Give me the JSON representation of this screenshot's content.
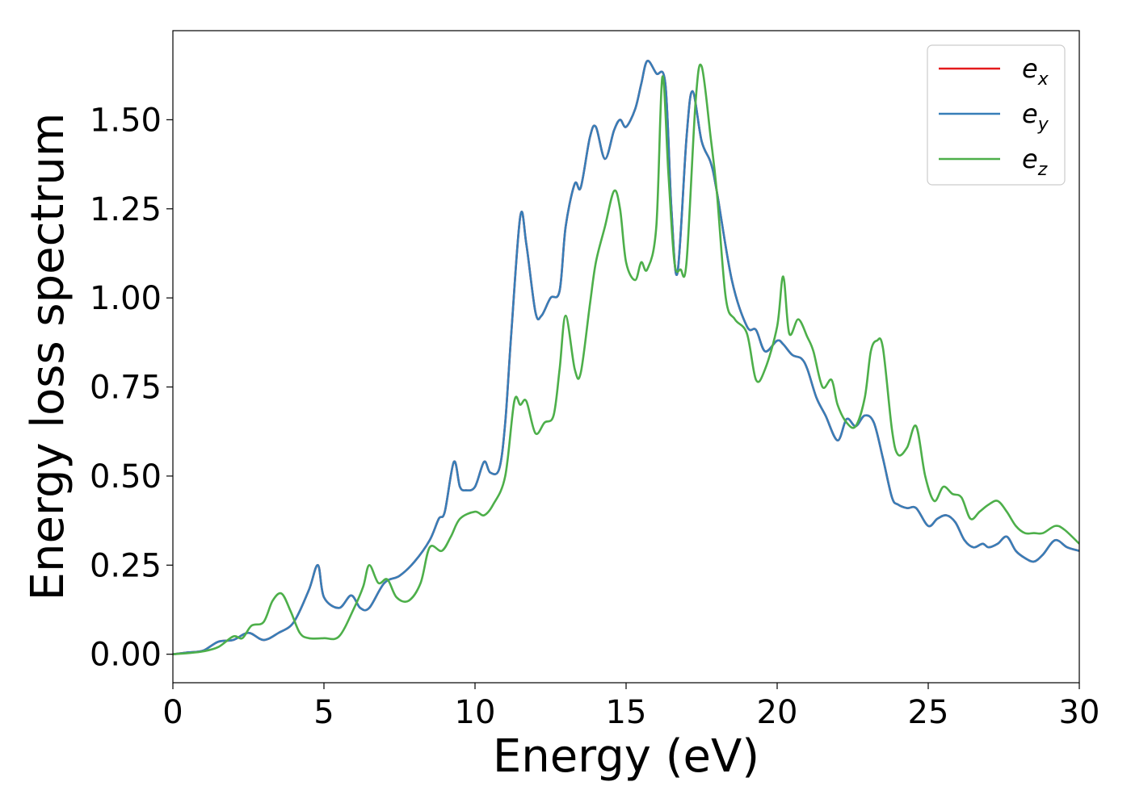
{
  "chart_data": {
    "type": "line",
    "title": "",
    "xlabel": "Energy (eV)",
    "ylabel": "Energy loss spectrum",
    "xlim": [
      0,
      30
    ],
    "ylim": [
      -0.08,
      1.75
    ],
    "xticks": [
      0,
      5,
      10,
      15,
      20,
      25,
      30
    ],
    "xtick_labels": [
      "0",
      "5",
      "10",
      "15",
      "20",
      "25",
      "30"
    ],
    "yticks": [
      0.0,
      0.25,
      0.5,
      0.75,
      1.0,
      1.25,
      1.5
    ],
    "ytick_labels": [
      "0.00",
      "0.25",
      "0.50",
      "0.75",
      "1.00",
      "1.25",
      "1.50"
    ],
    "grid": false,
    "legend_position": "top-right",
    "legend": [
      {
        "base": "e",
        "sub": "x"
      },
      {
        "base": "e",
        "sub": "y"
      },
      {
        "base": "e",
        "sub": "z"
      }
    ],
    "series": [
      {
        "name": "e_x",
        "color": "#e41a1c",
        "x": [
          0,
          0.5,
          1.0,
          1.5,
          2.0,
          2.5,
          3.0,
          3.5,
          4.0,
          4.5,
          4.8,
          5.0,
          5.5,
          5.9,
          6.2,
          6.5,
          7.0,
          7.5,
          8.0,
          8.5,
          8.8,
          9.0,
          9.3,
          9.5,
          9.7,
          10.0,
          10.3,
          10.5,
          10.8,
          11.0,
          11.2,
          11.5,
          11.7,
          12.0,
          12.2,
          12.5,
          12.8,
          13.0,
          13.3,
          13.5,
          13.8,
          14.0,
          14.3,
          14.6,
          14.8,
          15.0,
          15.3,
          15.5,
          15.7,
          16.0,
          16.3,
          16.5,
          16.7,
          17.0,
          17.2,
          17.5,
          17.8,
          18.0,
          18.5,
          19.0,
          19.3,
          19.6,
          20.0,
          20.2,
          20.5,
          20.8,
          21.0,
          21.3,
          21.6,
          22.0,
          22.3,
          22.6,
          22.9,
          23.2,
          23.5,
          23.8,
          24.0,
          24.3,
          24.6,
          25.0,
          25.3,
          25.6,
          25.9,
          26.2,
          26.5,
          26.8,
          27.0,
          27.3,
          27.6,
          27.9,
          28.2,
          28.5,
          28.8,
          29.2,
          29.6,
          30.0
        ],
        "values": [
          0.0,
          0.005,
          0.01,
          0.035,
          0.04,
          0.06,
          0.04,
          0.06,
          0.09,
          0.18,
          0.25,
          0.16,
          0.13,
          0.165,
          0.13,
          0.13,
          0.2,
          0.22,
          0.26,
          0.32,
          0.38,
          0.4,
          0.54,
          0.47,
          0.46,
          0.47,
          0.54,
          0.51,
          0.52,
          0.65,
          0.9,
          1.23,
          1.15,
          0.96,
          0.95,
          1.0,
          1.02,
          1.2,
          1.32,
          1.31,
          1.45,
          1.48,
          1.39,
          1.47,
          1.5,
          1.48,
          1.53,
          1.6,
          1.665,
          1.63,
          1.6,
          1.25,
          1.07,
          1.45,
          1.58,
          1.44,
          1.38,
          1.3,
          1.05,
          0.92,
          0.91,
          0.85,
          0.88,
          0.87,
          0.84,
          0.83,
          0.8,
          0.72,
          0.67,
          0.6,
          0.66,
          0.64,
          0.67,
          0.65,
          0.55,
          0.44,
          0.42,
          0.41,
          0.41,
          0.36,
          0.38,
          0.39,
          0.37,
          0.32,
          0.3,
          0.31,
          0.3,
          0.31,
          0.33,
          0.29,
          0.27,
          0.26,
          0.28,
          0.32,
          0.3,
          0.29
        ]
      },
      {
        "name": "e_y",
        "color": "#377eb8",
        "x": [
          0,
          0.5,
          1.0,
          1.5,
          2.0,
          2.5,
          3.0,
          3.5,
          4.0,
          4.5,
          4.8,
          5.0,
          5.5,
          5.9,
          6.2,
          6.5,
          7.0,
          7.5,
          8.0,
          8.5,
          8.8,
          9.0,
          9.3,
          9.5,
          9.7,
          10.0,
          10.3,
          10.5,
          10.8,
          11.0,
          11.2,
          11.5,
          11.7,
          12.0,
          12.2,
          12.5,
          12.8,
          13.0,
          13.3,
          13.5,
          13.8,
          14.0,
          14.3,
          14.6,
          14.8,
          15.0,
          15.3,
          15.5,
          15.7,
          16.0,
          16.3,
          16.5,
          16.7,
          17.0,
          17.2,
          17.5,
          17.8,
          18.0,
          18.5,
          19.0,
          19.3,
          19.6,
          20.0,
          20.2,
          20.5,
          20.8,
          21.0,
          21.3,
          21.6,
          22.0,
          22.3,
          22.6,
          22.9,
          23.2,
          23.5,
          23.8,
          24.0,
          24.3,
          24.6,
          25.0,
          25.3,
          25.6,
          25.9,
          26.2,
          26.5,
          26.8,
          27.0,
          27.3,
          27.6,
          27.9,
          28.2,
          28.5,
          28.8,
          29.2,
          29.6,
          30.0
        ],
        "values": [
          0.0,
          0.005,
          0.01,
          0.035,
          0.04,
          0.06,
          0.04,
          0.06,
          0.09,
          0.18,
          0.25,
          0.16,
          0.13,
          0.165,
          0.13,
          0.13,
          0.2,
          0.22,
          0.26,
          0.32,
          0.38,
          0.4,
          0.54,
          0.47,
          0.46,
          0.47,
          0.54,
          0.51,
          0.52,
          0.65,
          0.9,
          1.23,
          1.15,
          0.96,
          0.95,
          1.0,
          1.02,
          1.2,
          1.32,
          1.31,
          1.45,
          1.48,
          1.39,
          1.47,
          1.5,
          1.48,
          1.53,
          1.6,
          1.665,
          1.63,
          1.6,
          1.25,
          1.07,
          1.45,
          1.58,
          1.44,
          1.38,
          1.3,
          1.05,
          0.92,
          0.91,
          0.85,
          0.88,
          0.87,
          0.84,
          0.83,
          0.8,
          0.72,
          0.67,
          0.6,
          0.66,
          0.64,
          0.67,
          0.65,
          0.55,
          0.44,
          0.42,
          0.41,
          0.41,
          0.36,
          0.38,
          0.39,
          0.37,
          0.32,
          0.3,
          0.31,
          0.3,
          0.31,
          0.33,
          0.29,
          0.27,
          0.26,
          0.28,
          0.32,
          0.3,
          0.29
        ]
      },
      {
        "name": "e_z",
        "color": "#4daf4a",
        "x": [
          0,
          0.5,
          1.0,
          1.5,
          2.0,
          2.3,
          2.6,
          3.0,
          3.3,
          3.6,
          3.9,
          4.2,
          4.5,
          5.0,
          5.5,
          6.0,
          6.3,
          6.5,
          6.8,
          7.1,
          7.4,
          7.8,
          8.2,
          8.5,
          8.9,
          9.2,
          9.5,
          10.0,
          10.3,
          10.6,
          11.0,
          11.3,
          11.5,
          11.7,
          12.0,
          12.3,
          12.6,
          12.8,
          13.0,
          13.3,
          13.5,
          13.8,
          14.0,
          14.3,
          14.6,
          14.8,
          15.0,
          15.3,
          15.5,
          15.7,
          16.0,
          16.2,
          16.4,
          16.6,
          16.8,
          17.0,
          17.3,
          17.5,
          17.8,
          18.0,
          18.3,
          18.6,
          19.0,
          19.3,
          19.6,
          20.0,
          20.2,
          20.4,
          20.7,
          21.0,
          21.2,
          21.5,
          21.8,
          22.0,
          22.3,
          22.6,
          22.9,
          23.1,
          23.3,
          23.5,
          23.8,
          24.0,
          24.3,
          24.6,
          24.9,
          25.2,
          25.5,
          25.8,
          26.1,
          26.4,
          26.7,
          27.0,
          27.3,
          27.6,
          27.9,
          28.2,
          28.5,
          28.8,
          29.2,
          29.5,
          30.0
        ],
        "values": [
          0.0,
          0.003,
          0.008,
          0.02,
          0.05,
          0.045,
          0.08,
          0.09,
          0.15,
          0.17,
          0.12,
          0.06,
          0.045,
          0.045,
          0.05,
          0.13,
          0.19,
          0.25,
          0.2,
          0.21,
          0.16,
          0.15,
          0.2,
          0.3,
          0.29,
          0.33,
          0.38,
          0.4,
          0.39,
          0.42,
          0.5,
          0.71,
          0.7,
          0.71,
          0.62,
          0.65,
          0.67,
          0.8,
          0.95,
          0.8,
          0.79,
          0.98,
          1.1,
          1.2,
          1.3,
          1.25,
          1.1,
          1.05,
          1.1,
          1.08,
          1.2,
          1.62,
          1.35,
          1.1,
          1.08,
          1.1,
          1.55,
          1.65,
          1.45,
          1.3,
          1.0,
          0.94,
          0.9,
          0.77,
          0.8,
          0.92,
          1.06,
          0.9,
          0.94,
          0.89,
          0.85,
          0.75,
          0.77,
          0.7,
          0.65,
          0.64,
          0.72,
          0.85,
          0.88,
          0.86,
          0.63,
          0.56,
          0.58,
          0.64,
          0.5,
          0.43,
          0.47,
          0.45,
          0.44,
          0.38,
          0.4,
          0.42,
          0.43,
          0.4,
          0.36,
          0.34,
          0.34,
          0.34,
          0.36,
          0.35,
          0.31
        ]
      }
    ]
  }
}
